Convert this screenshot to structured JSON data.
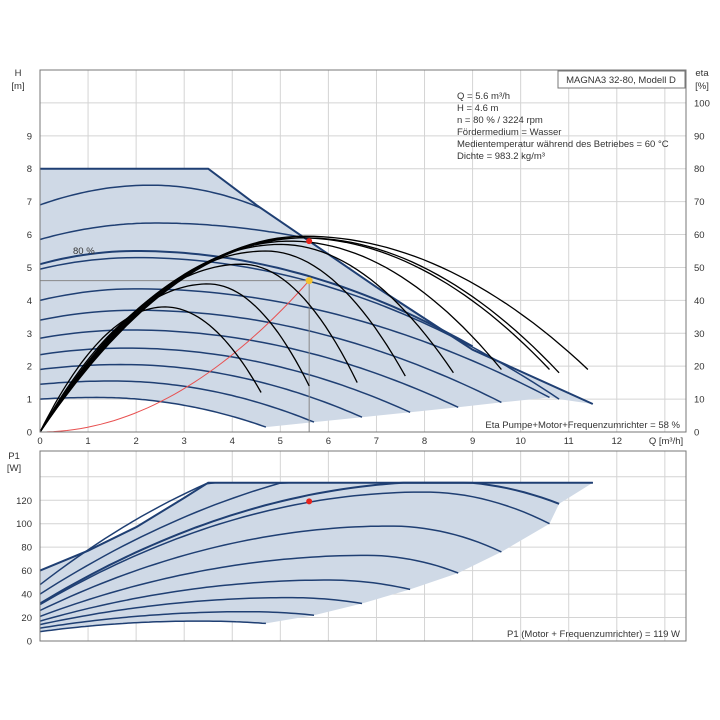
{
  "chart_data": [
    {
      "type": "line",
      "title": "MAGNA3 32-80, Modell D",
      "xlabel": "Q [m³/h]",
      "ylabel_left_name": "H",
      "ylabel_left_unit": "[m]",
      "ylabel_right_name": "eta",
      "ylabel_right_unit": "[%]",
      "xlim": [
        0,
        13.44
      ],
      "ylim": [
        0,
        11
      ],
      "ylim_right": [
        0,
        110
      ],
      "x_ticks": [
        0,
        1,
        2,
        3,
        4,
        5,
        6,
        7,
        8,
        9,
        10,
        11,
        12
      ],
      "y_ticks": [
        0,
        1,
        2,
        3,
        4,
        5,
        6,
        7,
        8,
        9
      ],
      "y_grid": [
        0,
        1,
        2,
        3,
        4,
        5,
        6,
        7,
        8,
        9,
        10
      ],
      "y_right_ticks": [
        0,
        10,
        20,
        30,
        40,
        50,
        60,
        70,
        80,
        90,
        100
      ],
      "grid": true,
      "info": [
        "Q = 5.6 m³/h",
        "H = 4.6 m",
        "n = 80 % / 3224 rpm",
        "Fördermedium = Wasser",
        "Medientemperatur während des Betriebes = 60 °C",
        "Dichte = 983.2 kg/m³"
      ],
      "speed_label": "80 %",
      "footer": "Eta Pumpe+Motor+Frequenzumrichter = 58 %",
      "max_curve": [
        [
          0,
          8
        ],
        [
          3.5,
          8
        ],
        [
          4.5,
          6.9
        ],
        [
          5.5,
          5.9
        ],
        [
          7,
          4.4
        ],
        [
          9,
          2.5
        ],
        [
          11.5,
          0.85
        ]
      ],
      "head_curves_H0_Qpeak_Hpeak_Qend_Hend": [
        [
          6.9,
          2.3,
          7.5,
          4.6,
          6.8
        ],
        [
          5.85,
          2.4,
          6.35,
          5.5,
          5.9
        ],
        [
          5.1,
          2.0,
          5.5,
          9.0,
          2.6
        ],
        [
          4.95,
          2.0,
          5.3,
          10.8,
          1.0
        ],
        [
          4.0,
          2.0,
          4.35,
          10.6,
          1.05
        ],
        [
          3.4,
          2.0,
          3.7,
          9.6,
          0.9
        ],
        [
          2.85,
          1.9,
          3.1,
          8.7,
          0.75
        ],
        [
          2.35,
          1.8,
          2.55,
          7.7,
          0.6
        ],
        [
          1.9,
          1.7,
          2.05,
          6.7,
          0.45
        ],
        [
          1.45,
          1.5,
          1.55,
          5.7,
          0.3
        ],
        [
          1.0,
          1.2,
          1.05,
          4.7,
          0.15
        ]
      ],
      "eta_curves_Qpeak_etapeak_Qend_etaend": [
        [
          2.6,
          38,
          4.6,
          12
        ],
        [
          3.5,
          45,
          5.6,
          14
        ],
        [
          4.2,
          51,
          6.6,
          15
        ],
        [
          4.7,
          55,
          7.6,
          17
        ],
        [
          5.0,
          57,
          8.6,
          18
        ],
        [
          5.2,
          58,
          9.6,
          19
        ],
        [
          5.4,
          59,
          10.6,
          19
        ],
        [
          5.5,
          59,
          10.8,
          18
        ],
        [
          5.5,
          59.5,
          11.4,
          19
        ]
      ],
      "system_curve": {
        "Q": 5.6,
        "H": 4.6
      },
      "operating_point": {
        "Q": 5.6,
        "H": 4.6,
        "eta": 58
      },
      "colors": {
        "region": "#cfd9e6",
        "curve": "#1f3f73",
        "eta": "#000000",
        "system": "#e85050",
        "point_eta": "#e8221b",
        "point_H": "#f2c12e",
        "grid": "#d4d4d4"
      }
    },
    {
      "type": "line",
      "xlabel": "Q [m³/h]",
      "ylabel_name": "P1",
      "ylabel_unit": "[W]",
      "xlim": [
        0,
        13.44
      ],
      "ylim": [
        0,
        162
      ],
      "y_ticks": [
        0,
        20,
        40,
        60,
        80,
        100,
        120
      ],
      "y_grid": [
        0,
        20,
        40,
        60,
        80,
        100,
        120,
        140
      ],
      "grid": true,
      "power_limit": 135,
      "footer": "P1 (Motor + Frequenzumrichter) = 119 W",
      "max_curve": [
        [
          0,
          60
        ],
        [
          1,
          77
        ],
        [
          2,
          97
        ],
        [
          3,
          122
        ],
        [
          3.5,
          135
        ]
      ],
      "power_curves_P0_Qpeak_Ppeak_Qend_Pend": [
        [
          48,
          8.0,
          175,
          11.5,
          135
        ],
        [
          40,
          9.0,
          158,
          11.5,
          135
        ],
        [
          32,
          8.4,
          136,
          10.8,
          117
        ],
        [
          31,
          8.0,
          127,
          10.6,
          100
        ],
        [
          26,
          7.3,
          98,
          9.6,
          76
        ],
        [
          21,
          6.8,
          73,
          8.7,
          58
        ],
        [
          17,
          6.0,
          52,
          7.7,
          44
        ],
        [
          14,
          5.2,
          37,
          6.7,
          32
        ],
        [
          11,
          4.3,
          25,
          5.7,
          22
        ],
        [
          8,
          3.3,
          17,
          4.7,
          15
        ]
      ],
      "operating_point": {
        "Q": 5.6,
        "P1": 119
      }
    }
  ]
}
